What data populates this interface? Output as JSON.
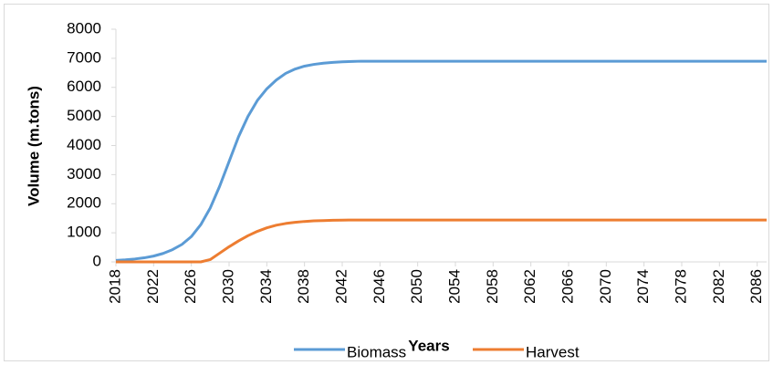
{
  "chart_data": {
    "type": "line",
    "xlabel": "Years",
    "ylabel": "Volume (m.tons)",
    "x": [
      2018,
      2019,
      2020,
      2021,
      2022,
      2023,
      2024,
      2025,
      2026,
      2027,
      2028,
      2029,
      2030,
      2031,
      2032,
      2033,
      2034,
      2035,
      2036,
      2037,
      2038,
      2039,
      2040,
      2041,
      2042,
      2043,
      2044,
      2045,
      2046,
      2047,
      2048,
      2049,
      2050,
      2051,
      2052,
      2053,
      2054,
      2055,
      2056,
      2057,
      2058,
      2059,
      2060,
      2061,
      2062,
      2063,
      2064,
      2065,
      2066,
      2067,
      2068,
      2069,
      2070,
      2071,
      2072,
      2073,
      2074,
      2075,
      2076,
      2077,
      2078,
      2079,
      2080,
      2081,
      2082,
      2083,
      2084,
      2085,
      2086,
      2087
    ],
    "series": [
      {
        "name": "Biomass",
        "color": "#5b9bd5",
        "values": [
          50,
          70,
          100,
          140,
          200,
          290,
          420,
          600,
          870,
          1280,
          1850,
          2600,
          3450,
          4300,
          5000,
          5550,
          5950,
          6250,
          6480,
          6630,
          6730,
          6790,
          6830,
          6860,
          6880,
          6890,
          6900,
          6900,
          6900,
          6900,
          6900,
          6900,
          6900,
          6900,
          6900,
          6900,
          6900,
          6900,
          6900,
          6900,
          6900,
          6900,
          6900,
          6900,
          6900,
          6900,
          6900,
          6900,
          6900,
          6900,
          6900,
          6900,
          6900,
          6900,
          6900,
          6900,
          6900,
          6900,
          6900,
          6900,
          6900,
          6900,
          6900,
          6900,
          6900,
          6900,
          6900,
          6900,
          6900,
          6900
        ]
      },
      {
        "name": "Harvest",
        "color": "#ed7d31",
        "values": [
          0,
          0,
          0,
          0,
          0,
          0,
          0,
          0,
          0,
          0,
          80,
          300,
          520,
          720,
          900,
          1050,
          1170,
          1260,
          1320,
          1360,
          1390,
          1410,
          1420,
          1430,
          1435,
          1440,
          1440,
          1440,
          1440,
          1440,
          1440,
          1440,
          1440,
          1440,
          1440,
          1440,
          1440,
          1440,
          1440,
          1440,
          1440,
          1440,
          1440,
          1440,
          1440,
          1440,
          1440,
          1440,
          1440,
          1440,
          1440,
          1440,
          1440,
          1440,
          1440,
          1440,
          1440,
          1440,
          1440,
          1440,
          1440,
          1440,
          1440,
          1440,
          1440,
          1440,
          1440,
          1440,
          1440,
          1440
        ]
      }
    ],
    "xlim": [
      2018,
      2087
    ],
    "xticks": [
      2018,
      2022,
      2026,
      2030,
      2034,
      2038,
      2042,
      2046,
      2050,
      2054,
      2058,
      2062,
      2066,
      2070,
      2074,
      2078,
      2082,
      2086
    ],
    "ylim": [
      0,
      8000
    ],
    "yticks": [
      0,
      1000,
      2000,
      3000,
      4000,
      5000,
      6000,
      7000,
      8000
    ],
    "grid": false,
    "legend": "bottom"
  }
}
